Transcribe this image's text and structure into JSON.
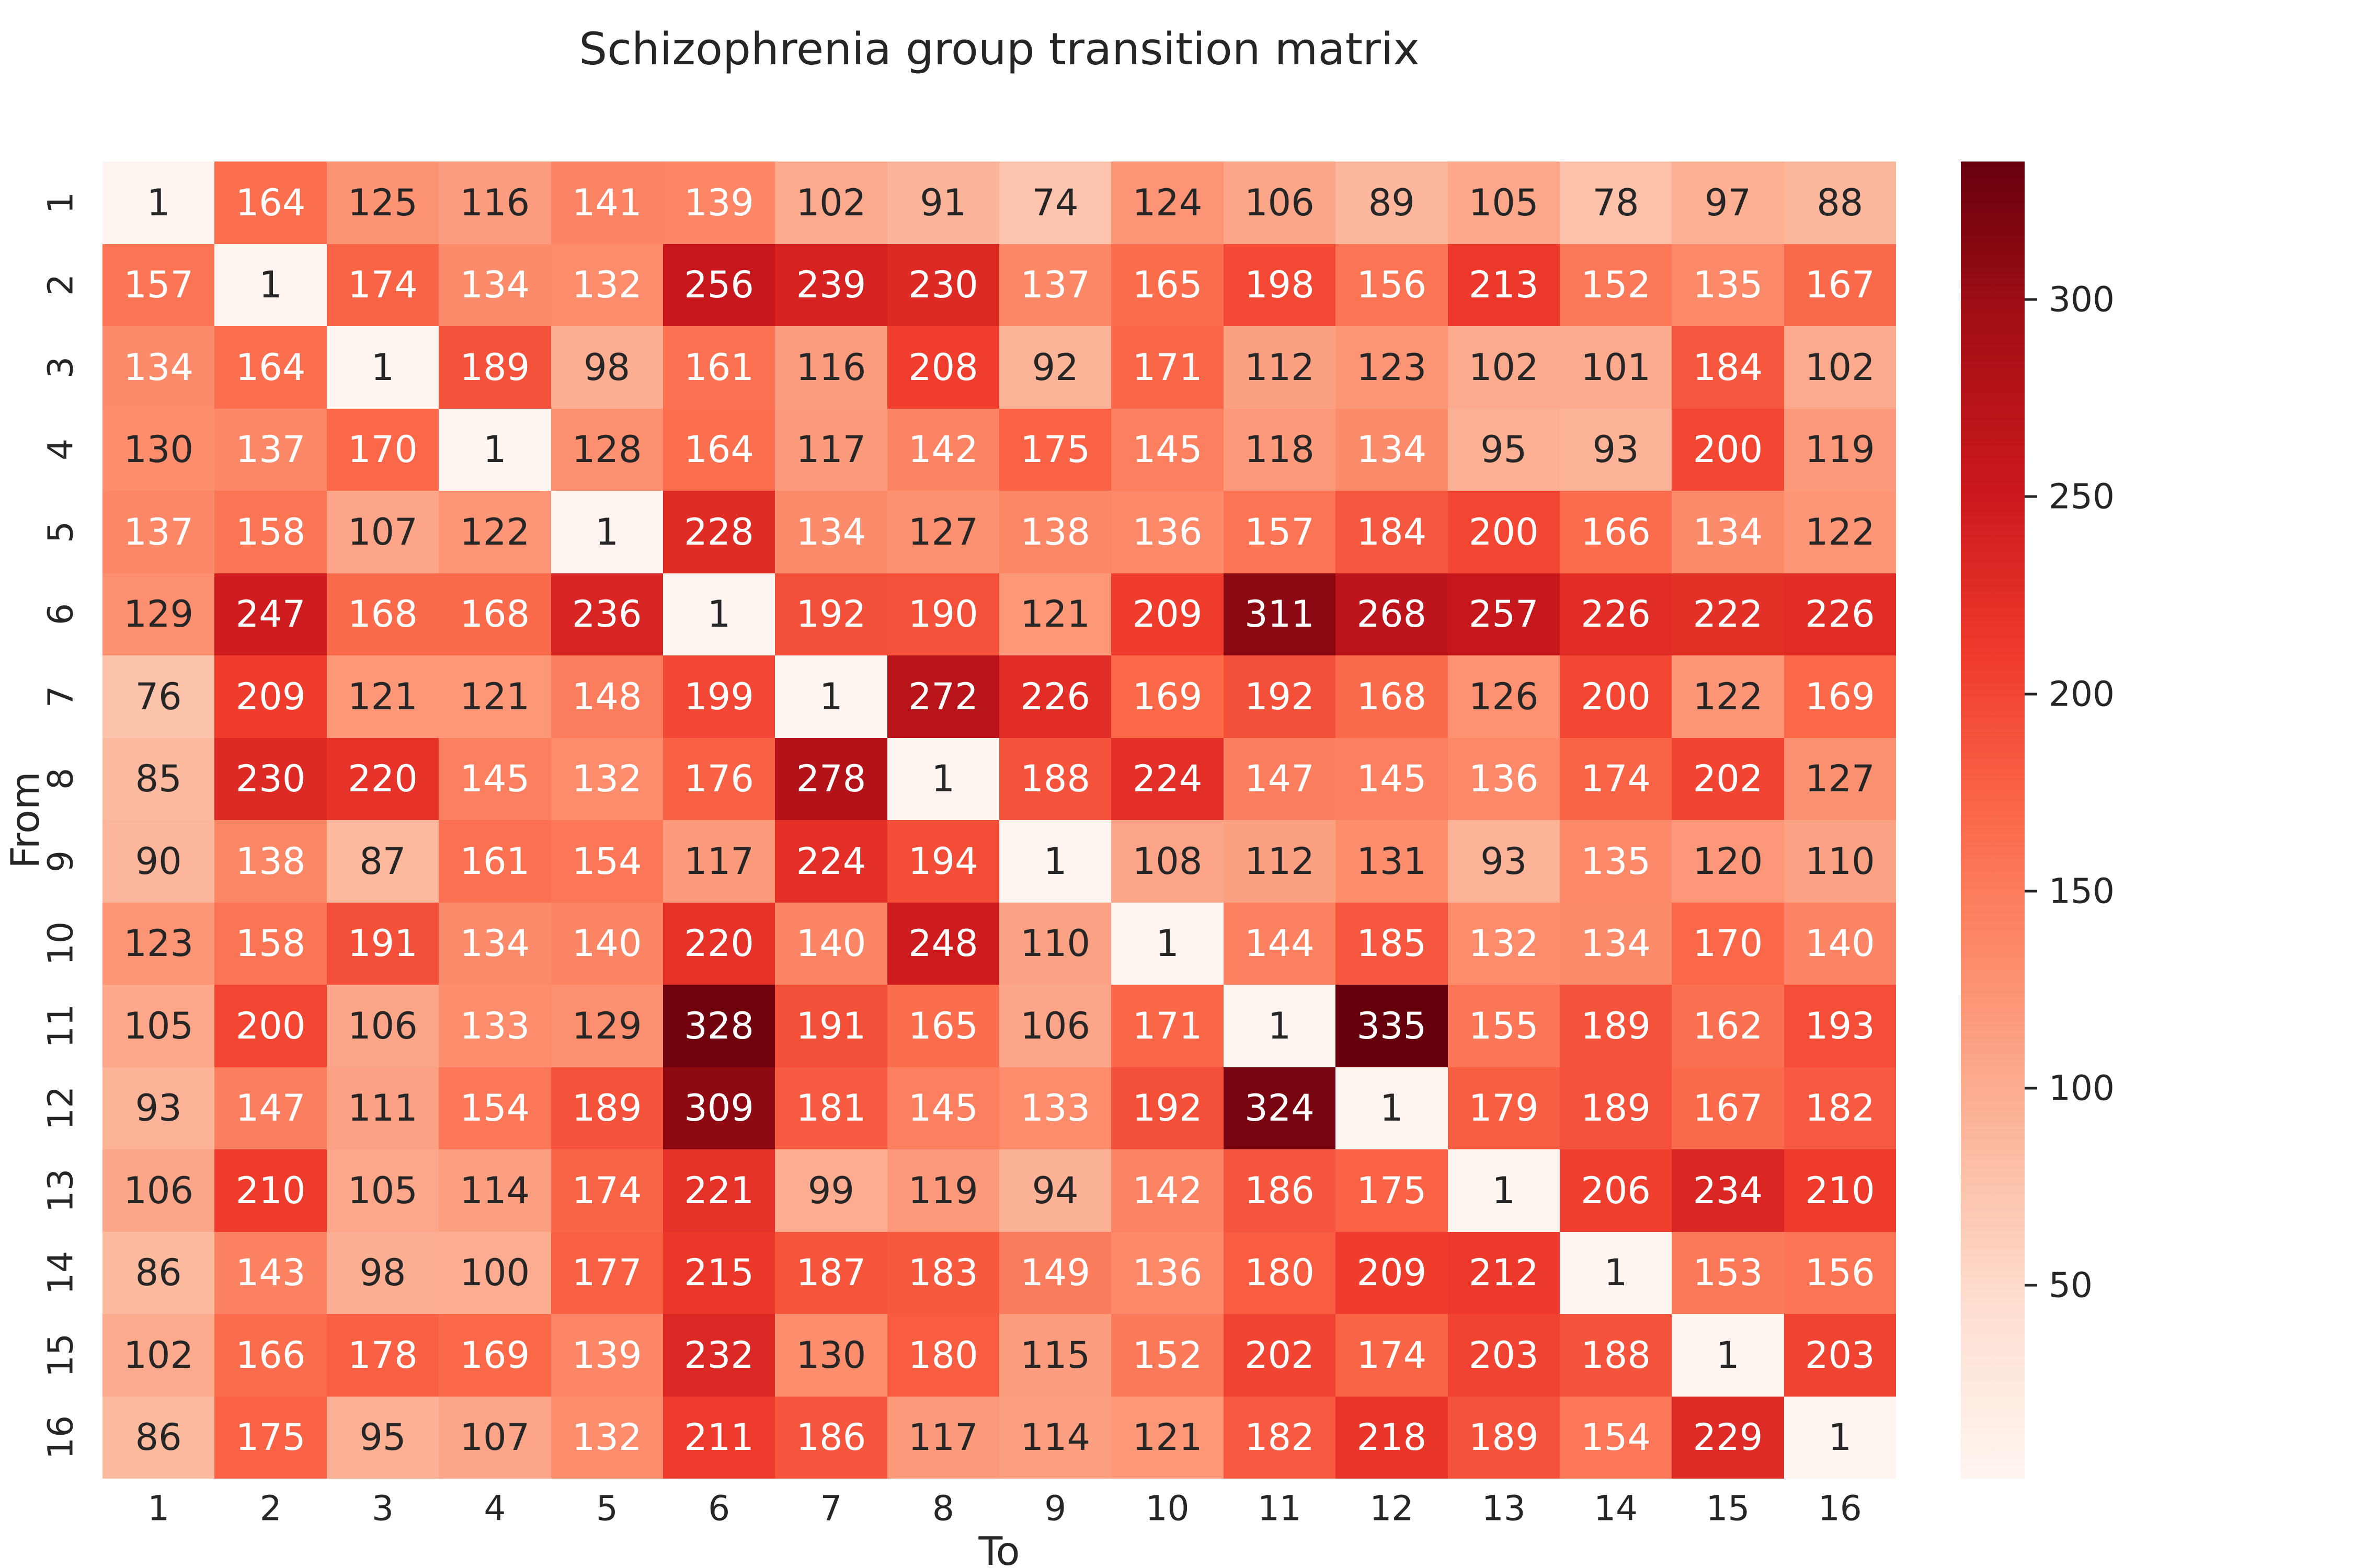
{
  "chart_data": {
    "type": "heatmap",
    "title": "Schizophrenia group transition matrix",
    "xlabel": "To",
    "ylabel": "From",
    "x_labels": [
      "1",
      "2",
      "3",
      "4",
      "5",
      "6",
      "7",
      "8",
      "9",
      "10",
      "11",
      "12",
      "13",
      "14",
      "15",
      "16"
    ],
    "y_labels": [
      "1",
      "2",
      "3",
      "4",
      "5",
      "6",
      "7",
      "8",
      "9",
      "10",
      "11",
      "12",
      "13",
      "14",
      "15",
      "16"
    ],
    "matrix": [
      [
        1,
        164,
        125,
        116,
        141,
        139,
        102,
        91,
        74,
        124,
        106,
        89,
        105,
        78,
        97,
        88
      ],
      [
        157,
        1,
        174,
        134,
        132,
        256,
        239,
        230,
        137,
        165,
        198,
        156,
        213,
        152,
        135,
        167
      ],
      [
        134,
        164,
        1,
        189,
        98,
        161,
        116,
        208,
        92,
        171,
        112,
        123,
        102,
        101,
        184,
        102
      ],
      [
        130,
        137,
        170,
        1,
        128,
        164,
        117,
        142,
        175,
        145,
        118,
        134,
        95,
        93,
        200,
        119
      ],
      [
        137,
        158,
        107,
        122,
        1,
        228,
        134,
        127,
        138,
        136,
        157,
        184,
        200,
        166,
        134,
        122
      ],
      [
        129,
        247,
        168,
        168,
        236,
        1,
        192,
        190,
        121,
        209,
        311,
        268,
        257,
        226,
        222,
        226
      ],
      [
        76,
        209,
        121,
        121,
        148,
        199,
        1,
        272,
        226,
        169,
        192,
        168,
        126,
        200,
        122,
        169
      ],
      [
        85,
        230,
        220,
        145,
        132,
        176,
        278,
        1,
        188,
        224,
        147,
        145,
        136,
        174,
        202,
        127
      ],
      [
        90,
        138,
        87,
        161,
        154,
        117,
        224,
        194,
        1,
        108,
        112,
        131,
        93,
        135,
        120,
        110
      ],
      [
        123,
        158,
        191,
        134,
        140,
        220,
        140,
        248,
        110,
        1,
        144,
        185,
        132,
        134,
        170,
        140
      ],
      [
        105,
        200,
        106,
        133,
        129,
        328,
        191,
        165,
        106,
        171,
        1,
        335,
        155,
        189,
        162,
        193
      ],
      [
        93,
        147,
        111,
        154,
        189,
        309,
        181,
        145,
        133,
        192,
        324,
        1,
        179,
        189,
        167,
        182
      ],
      [
        106,
        210,
        105,
        114,
        174,
        221,
        99,
        119,
        94,
        142,
        186,
        175,
        1,
        206,
        234,
        210
      ],
      [
        86,
        143,
        98,
        100,
        177,
        215,
        187,
        183,
        149,
        136,
        180,
        209,
        212,
        1,
        153,
        156
      ],
      [
        102,
        166,
        178,
        169,
        139,
        232,
        130,
        180,
        115,
        152,
        202,
        174,
        203,
        188,
        1,
        203
      ],
      [
        86,
        175,
        95,
        107,
        132,
        211,
        186,
        117,
        114,
        121,
        182,
        218,
        189,
        154,
        229,
        1
      ]
    ],
    "colormap": "Reds",
    "vmin": 1,
    "vmax": 335,
    "colorbar_ticks": [
      50,
      100,
      150,
      200,
      250,
      300
    ],
    "annotated": true,
    "grid": false,
    "legend_position": "right-colorbar"
  },
  "style": {
    "background": "#ffffff",
    "text_color": "#262626",
    "annotation_light": "#ffffff",
    "annotation_dark": "#262626",
    "white_text_min_value": 132
  }
}
